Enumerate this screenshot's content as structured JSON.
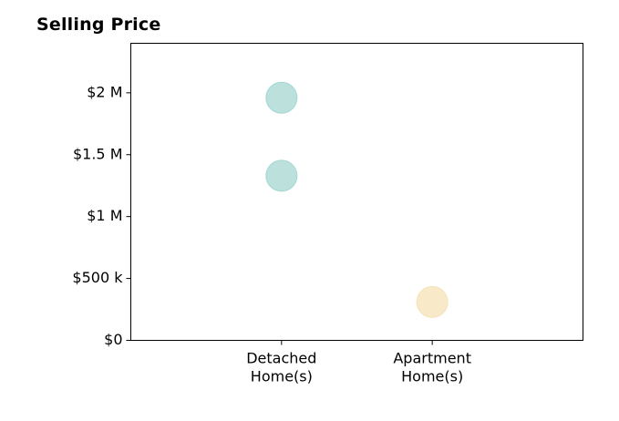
{
  "chart_data": {
    "type": "scatter",
    "title": "Selling Price",
    "xlabel": "",
    "ylabel": "",
    "categories": [
      [
        "Detached",
        "Home(s)"
      ],
      [
        "Apartment",
        "Home(s)"
      ]
    ],
    "x_range": [
      0,
      3
    ],
    "x_positions": [
      1,
      2
    ],
    "ylim": [
      0,
      2400000
    ],
    "y_ticks": [
      {
        "value": 0,
        "label": "$0"
      },
      {
        "value": 500000,
        "label": "$500 k"
      },
      {
        "value": 1000000,
        "label": "$1 M"
      },
      {
        "value": 1500000,
        "label": "$1.5 M"
      },
      {
        "value": 2000000,
        "label": "$2 M"
      }
    ],
    "grid": false,
    "legend": "none",
    "points": [
      {
        "category_index": 0,
        "y": 1960000,
        "color": "#9fd4ce"
      },
      {
        "category_index": 0,
        "y": 1330000,
        "color": "#9fd4ce"
      },
      {
        "category_index": 1,
        "y": 310000,
        "color": "#f5e0b2"
      }
    ]
  }
}
